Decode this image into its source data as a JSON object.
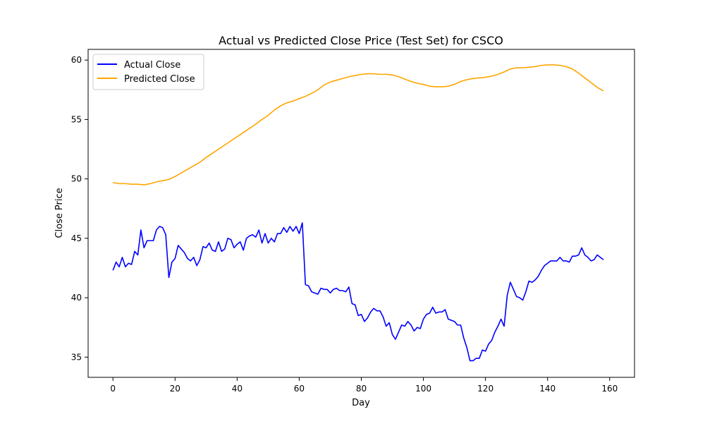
{
  "chart_data": {
    "type": "line",
    "title": "Actual vs Predicted Close Price (Test Set) for CSCO",
    "xlabel": "Day",
    "ylabel": "Close Price",
    "xlim": [
      -8,
      168
    ],
    "ylim": [
      33.3,
      60.9
    ],
    "xticks": [
      0,
      20,
      40,
      60,
      80,
      100,
      120,
      140,
      160
    ],
    "yticks": [
      35,
      40,
      45,
      50,
      55,
      60
    ],
    "grid": false,
    "legend_position": "top-left",
    "series": [
      {
        "name": "Actual Close",
        "color": "#0000ff",
        "points": [
          [
            0,
            42.3
          ],
          [
            1,
            43.0
          ],
          [
            2,
            42.6
          ],
          [
            3,
            43.4
          ],
          [
            4,
            42.6
          ],
          [
            5,
            42.9
          ],
          [
            6,
            42.8
          ],
          [
            7,
            43.9
          ],
          [
            8,
            43.6
          ],
          [
            9,
            45.7
          ],
          [
            10,
            44.2
          ],
          [
            11,
            44.8
          ],
          [
            12,
            44.8
          ],
          [
            13,
            44.8
          ],
          [
            14,
            45.7
          ],
          [
            15,
            46.0
          ],
          [
            16,
            45.9
          ],
          [
            17,
            45.3
          ],
          [
            18,
            41.7
          ],
          [
            19,
            43.0
          ],
          [
            20,
            43.3
          ],
          [
            21,
            44.4
          ],
          [
            22,
            44.1
          ],
          [
            23,
            43.8
          ],
          [
            24,
            43.3
          ],
          [
            25,
            43.1
          ],
          [
            26,
            43.4
          ],
          [
            27,
            42.7
          ],
          [
            28,
            43.2
          ],
          [
            29,
            44.3
          ],
          [
            30,
            44.2
          ],
          [
            31,
            44.6
          ],
          [
            32,
            44.0
          ],
          [
            33,
            43.9
          ],
          [
            34,
            44.7
          ],
          [
            35,
            43.9
          ],
          [
            36,
            44.1
          ],
          [
            37,
            45.0
          ],
          [
            38,
            44.9
          ],
          [
            39,
            44.2
          ],
          [
            40,
            44.5
          ],
          [
            41,
            44.7
          ],
          [
            42,
            44.0
          ],
          [
            43,
            45.0
          ],
          [
            44,
            45.2
          ],
          [
            45,
            45.3
          ],
          [
            46,
            45.1
          ],
          [
            47,
            45.7
          ],
          [
            48,
            44.6
          ],
          [
            49,
            45.4
          ],
          [
            50,
            44.6
          ],
          [
            51,
            45.0
          ],
          [
            52,
            44.7
          ],
          [
            53,
            45.4
          ],
          [
            54,
            45.4
          ],
          [
            55,
            45.9
          ],
          [
            56,
            45.5
          ],
          [
            57,
            46.0
          ],
          [
            58,
            45.6
          ],
          [
            59,
            46.0
          ],
          [
            60,
            45.4
          ],
          [
            61,
            46.3
          ],
          [
            62,
            41.1
          ],
          [
            63,
            41.0
          ],
          [
            64,
            40.5
          ],
          [
            65,
            40.4
          ],
          [
            66,
            40.3
          ],
          [
            67,
            40.8
          ],
          [
            68,
            40.7
          ],
          [
            69,
            40.7
          ],
          [
            70,
            40.4
          ],
          [
            71,
            40.7
          ],
          [
            72,
            40.8
          ],
          [
            73,
            40.6
          ],
          [
            74,
            40.6
          ],
          [
            75,
            40.5
          ],
          [
            76,
            40.9
          ],
          [
            77,
            39.5
          ],
          [
            78,
            39.4
          ],
          [
            79,
            38.5
          ],
          [
            80,
            38.6
          ],
          [
            81,
            38.0
          ],
          [
            82,
            38.3
          ],
          [
            83,
            38.8
          ],
          [
            84,
            39.1
          ],
          [
            85,
            38.9
          ],
          [
            86,
            38.9
          ],
          [
            87,
            38.4
          ],
          [
            88,
            37.6
          ],
          [
            89,
            37.9
          ],
          [
            90,
            36.9
          ],
          [
            91,
            36.5
          ],
          [
            92,
            37.1
          ],
          [
            93,
            37.7
          ],
          [
            94,
            37.6
          ],
          [
            95,
            38.0
          ],
          [
            96,
            37.7
          ],
          [
            97,
            37.2
          ],
          [
            98,
            37.5
          ],
          [
            99,
            37.4
          ],
          [
            100,
            38.2
          ],
          [
            101,
            38.6
          ],
          [
            102,
            38.7
          ],
          [
            103,
            39.2
          ],
          [
            104,
            38.7
          ],
          [
            105,
            38.8
          ],
          [
            106,
            38.8
          ],
          [
            107,
            39.0
          ],
          [
            108,
            38.2
          ],
          [
            109,
            38.1
          ],
          [
            110,
            38.0
          ],
          [
            111,
            37.7
          ],
          [
            112,
            37.7
          ],
          [
            113,
            36.6
          ],
          [
            114,
            35.8
          ],
          [
            115,
            34.7
          ],
          [
            116,
            34.7
          ],
          [
            117,
            34.9
          ],
          [
            118,
            34.9
          ],
          [
            119,
            35.6
          ],
          [
            120,
            35.5
          ],
          [
            121,
            36.1
          ],
          [
            122,
            36.4
          ],
          [
            123,
            37.1
          ],
          [
            124,
            37.6
          ],
          [
            125,
            38.2
          ],
          [
            126,
            37.6
          ],
          [
            127,
            40.2
          ],
          [
            128,
            41.3
          ],
          [
            129,
            40.7
          ],
          [
            130,
            40.1
          ],
          [
            131,
            40.0
          ],
          [
            132,
            39.8
          ],
          [
            133,
            40.5
          ],
          [
            134,
            41.4
          ],
          [
            135,
            41.3
          ],
          [
            136,
            41.5
          ],
          [
            137,
            41.8
          ],
          [
            138,
            42.3
          ],
          [
            139,
            42.7
          ],
          [
            140,
            42.9
          ],
          [
            141,
            43.1
          ],
          [
            142,
            43.1
          ],
          [
            143,
            43.1
          ],
          [
            144,
            43.4
          ],
          [
            145,
            43.1
          ],
          [
            146,
            43.1
          ],
          [
            147,
            43.0
          ],
          [
            148,
            43.5
          ],
          [
            149,
            43.5
          ],
          [
            150,
            43.6
          ],
          [
            151,
            44.2
          ],
          [
            152,
            43.6
          ],
          [
            153,
            43.4
          ],
          [
            154,
            43.1
          ],
          [
            155,
            43.2
          ],
          [
            156,
            43.6
          ],
          [
            157,
            43.4
          ],
          [
            158,
            43.2
          ]
        ]
      },
      {
        "name": "Predicted Close",
        "color": "#ffa500",
        "points": [
          [
            0,
            49.7
          ],
          [
            2,
            49.6
          ],
          [
            4,
            49.6
          ],
          [
            6,
            49.55
          ],
          [
            8,
            49.55
          ],
          [
            10,
            49.5
          ],
          [
            12,
            49.6
          ],
          [
            14,
            49.75
          ],
          [
            16,
            49.85
          ],
          [
            18,
            49.95
          ],
          [
            20,
            50.2
          ],
          [
            22,
            50.5
          ],
          [
            24,
            50.8
          ],
          [
            26,
            51.1
          ],
          [
            28,
            51.4
          ],
          [
            30,
            51.8
          ],
          [
            32,
            52.15
          ],
          [
            34,
            52.5
          ],
          [
            36,
            52.85
          ],
          [
            38,
            53.2
          ],
          [
            40,
            53.55
          ],
          [
            42,
            53.9
          ],
          [
            44,
            54.25
          ],
          [
            46,
            54.6
          ],
          [
            48,
            55.0
          ],
          [
            50,
            55.35
          ],
          [
            52,
            55.8
          ],
          [
            54,
            56.15
          ],
          [
            56,
            56.4
          ],
          [
            58,
            56.55
          ],
          [
            60,
            56.75
          ],
          [
            62,
            56.95
          ],
          [
            64,
            57.2
          ],
          [
            66,
            57.5
          ],
          [
            68,
            57.9
          ],
          [
            70,
            58.15
          ],
          [
            72,
            58.3
          ],
          [
            74,
            58.45
          ],
          [
            76,
            58.6
          ],
          [
            78,
            58.7
          ],
          [
            80,
            58.8
          ],
          [
            82,
            58.85
          ],
          [
            84,
            58.85
          ],
          [
            86,
            58.8
          ],
          [
            88,
            58.8
          ],
          [
            90,
            58.75
          ],
          [
            92,
            58.6
          ],
          [
            94,
            58.4
          ],
          [
            96,
            58.2
          ],
          [
            98,
            58.05
          ],
          [
            100,
            57.95
          ],
          [
            102,
            57.8
          ],
          [
            104,
            57.75
          ],
          [
            106,
            57.75
          ],
          [
            108,
            57.8
          ],
          [
            110,
            57.95
          ],
          [
            112,
            58.2
          ],
          [
            114,
            58.35
          ],
          [
            116,
            58.45
          ],
          [
            118,
            58.5
          ],
          [
            120,
            58.55
          ],
          [
            122,
            58.65
          ],
          [
            124,
            58.8
          ],
          [
            126,
            59.0
          ],
          [
            128,
            59.25
          ],
          [
            130,
            59.35
          ],
          [
            132,
            59.35
          ],
          [
            134,
            59.4
          ],
          [
            136,
            59.45
          ],
          [
            138,
            59.55
          ],
          [
            140,
            59.6
          ],
          [
            142,
            59.6
          ],
          [
            144,
            59.55
          ],
          [
            146,
            59.45
          ],
          [
            148,
            59.25
          ],
          [
            150,
            58.9
          ],
          [
            152,
            58.5
          ],
          [
            154,
            58.1
          ],
          [
            156,
            57.7
          ],
          [
            158,
            57.4
          ]
        ]
      }
    ]
  }
}
